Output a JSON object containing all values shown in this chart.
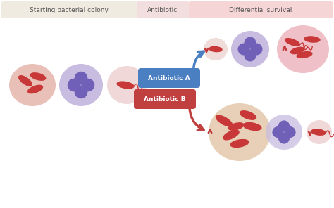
{
  "bg_color": "#ffffff",
  "header_colony_color": "#f0ebe0",
  "header_antibiotic_color": "#f2dede",
  "header_survival_color": "#f5d5d5",
  "header_colony_text": "Starting bacterial colony",
  "header_antibiotic_text": "Antibiotic",
  "header_survival_text": "Differential survival",
  "antibiotic_a_text": "Antibiotic A",
  "antibiotic_b_text": "Antibiotic B",
  "antibiotic_a_color": "#4a7fc1",
  "antibiotic_b_color": "#c04040",
  "cell_pink_color": "#e8c0b8",
  "cell_lavender_color": "#c8bce0",
  "cell_light_pink_color": "#f0d8d8",
  "cell_large_pink_color": "#f0c8c0",
  "cell_large_tan_color": "#e8d0b8",
  "bacteria_color": "#c83838",
  "nucleus_dark": "#7060b8",
  "nucleus_light": "#9880d0",
  "arrow_color": "#c03838",
  "header_text_color": "#555555"
}
